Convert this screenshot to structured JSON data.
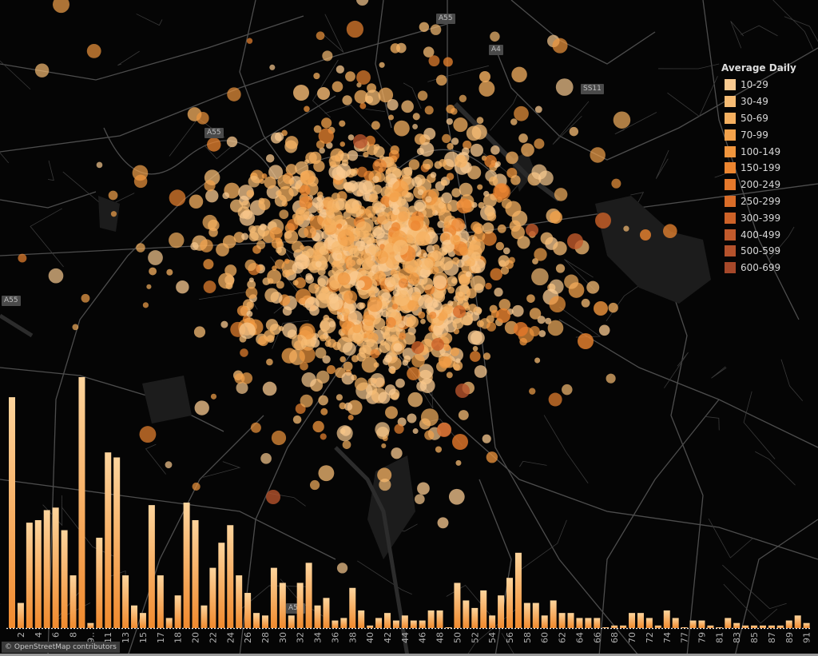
{
  "map": {
    "road_labels": [
      "A55",
      "A4",
      "SS11",
      "A55",
      "A55",
      "A55"
    ],
    "attribution": "© OpenStreetMap contributors",
    "background_color": "#050505",
    "road_color": "#4d4d4d"
  },
  "legend": {
    "title": "Average Daily",
    "items": [
      {
        "label": "10-29",
        "color": "#f9ca90"
      },
      {
        "label": "30-49",
        "color": "#f7bc74"
      },
      {
        "label": "50-69",
        "color": "#f5b060"
      },
      {
        "label": "70-99",
        "color": "#f3a24b"
      },
      {
        "label": "100-149",
        "color": "#f0953d"
      },
      {
        "label": "150-199",
        "color": "#ec8530"
      },
      {
        "label": "200-249",
        "color": "#e5782b"
      },
      {
        "label": "250-299",
        "color": "#d96c28"
      },
      {
        "label": "300-399",
        "color": "#cd6228"
      },
      {
        "label": "400-499",
        "color": "#c25a2c"
      },
      {
        "label": "500-599",
        "color": "#b5522c"
      },
      {
        "label": "600-699",
        "color": "#a6482a"
      }
    ]
  },
  "chart_data": {
    "type": "bar",
    "title": "",
    "xlabel": "",
    "ylabel": "",
    "bar_color_top": "#fdd49c",
    "bar_color_bottom": "#f08a2e",
    "tick_labels": [
      "2",
      "4",
      "6",
      "8",
      "9..",
      "11",
      "13",
      "15",
      "17",
      "18",
      "20",
      "22",
      "24",
      "26",
      "28",
      "30",
      "32",
      "34",
      "36",
      "38",
      "40",
      "42",
      "44",
      "46",
      "48",
      "50",
      "52",
      "54",
      "56",
      "58",
      "60",
      "62",
      "64",
      "66",
      "68",
      "70",
      "72",
      "74",
      "77",
      "79",
      "81",
      "83",
      "85",
      "87",
      "89",
      "91"
    ],
    "values": [
      92,
      10,
      42,
      43,
      47,
      48,
      39,
      21,
      100,
      2,
      36,
      70,
      68,
      21,
      9,
      6,
      49,
      21,
      4,
      13,
      50,
      43,
      9,
      24,
      34,
      41,
      21,
      14,
      6,
      5,
      24,
      18,
      5,
      18,
      26,
      9,
      12,
      3,
      4,
      16,
      7,
      1,
      4,
      6,
      3,
      5,
      3,
      3,
      7,
      7,
      0.3,
      18,
      11,
      8,
      15,
      5,
      13,
      20,
      30,
      10,
      10,
      5,
      11,
      6,
      6,
      4,
      4,
      4,
      0.3,
      1,
      1,
      6,
      6,
      4,
      1,
      7,
      4,
      0.3,
      3,
      3,
      1,
      0.3,
      4,
      2,
      1,
      1,
      1,
      1,
      1,
      3,
      5,
      2
    ]
  }
}
